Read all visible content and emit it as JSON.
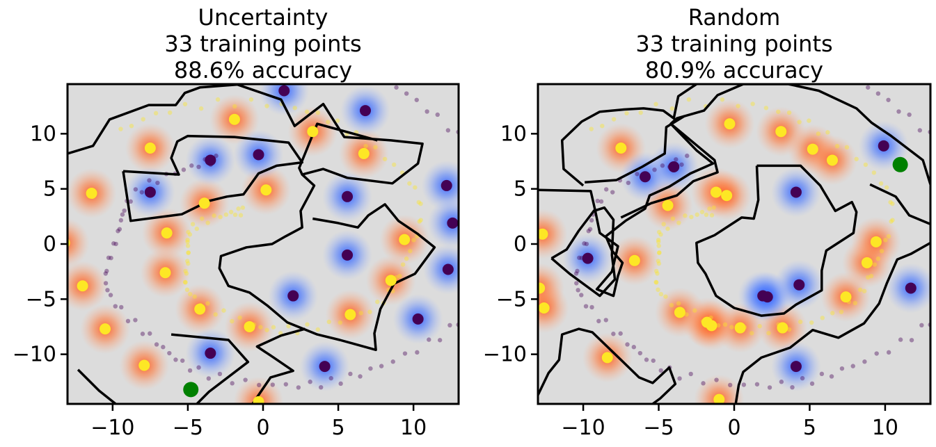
{
  "colors": {
    "background": "#dcdcdc",
    "positive_blob": "#ff5a1e",
    "negative_blob": "#2b5cff",
    "positive_point": "#fde725",
    "negative_point": "#440154",
    "pool_positive": "#fde725",
    "pool_negative": "#440154",
    "new_point": "#008000",
    "boundary": "#000000"
  },
  "chart_data": [
    {
      "type": "scatter",
      "title_lines": [
        "Uncertainty",
        "33 training points",
        "88.6% accuracy"
      ],
      "xlim": [
        -13,
        13
      ],
      "ylim": [
        -14.5,
        14.5
      ],
      "xticks": [
        "−10",
        "−5",
        "0",
        "5",
        "10"
      ],
      "xtick_values": [
        -10,
        -5,
        0,
        5,
        10
      ],
      "yticks": [
        "−10",
        "−5",
        "0",
        "5",
        "10"
      ],
      "ytick_values": [
        -10,
        -5,
        0,
        5,
        10
      ],
      "grid": false,
      "positive_points": [
        [
          -11.4,
          4.6
        ],
        [
          -13.2,
          0.1
        ],
        [
          -12,
          -3.8
        ],
        [
          -10.5,
          -7.7
        ],
        [
          -7.9,
          -11
        ],
        [
          -0.3,
          -14.3
        ],
        [
          -7.5,
          8.7
        ],
        [
          -1.9,
          11.3
        ],
        [
          3.3,
          10.2
        ],
        [
          6.7,
          8.2
        ],
        [
          -3.9,
          3.7
        ],
        [
          0.2,
          4.9
        ],
        [
          -6.4,
          1
        ],
        [
          -6.5,
          -2.6
        ],
        [
          -4.2,
          -5.9
        ],
        [
          -0.9,
          -7.5
        ],
        [
          5.8,
          -6.4
        ],
        [
          8.5,
          -3.3
        ],
        [
          9.4,
          0.4
        ]
      ],
      "negative_points": [
        [
          1.4,
          13.9
        ],
        [
          6.8,
          12.1
        ],
        [
          -3.5,
          7.6
        ],
        [
          -0.3,
          8.1
        ],
        [
          -7.5,
          4.7
        ],
        [
          5.6,
          4.3
        ],
        [
          12.2,
          5.3
        ],
        [
          12.6,
          1.9
        ],
        [
          5.6,
          -1
        ],
        [
          12.3,
          -2.3
        ],
        [
          10.3,
          -6.8
        ],
        [
          2,
          -4.7
        ],
        [
          -3.5,
          -9.9
        ],
        [
          4.1,
          -11.1
        ]
      ],
      "new_point": [
        -4.8,
        -13.2
      ],
      "pool_spirals": {
        "positive": {
          "a": 0.0,
          "b": 1.62,
          "t_start": 2.0,
          "t_end": 8.6,
          "count": 90
        },
        "negative": {
          "a": 0.0,
          "b": 1.62,
          "t_start": 5.1,
          "t_end": 11.1,
          "count": 100
        }
      },
      "boundary_paths": [
        [
          [
            -13,
            8.2
          ],
          [
            -11.3,
            8.9
          ],
          [
            -10.2,
            11.3
          ],
          [
            -7.6,
            12.6
          ],
          [
            -5.8,
            12.6
          ],
          [
            -5.2,
            13.7
          ],
          [
            -4.2,
            14.2
          ],
          [
            -1.3,
            14.5
          ]
        ],
        [
          [
            -1.8,
            14.5
          ],
          [
            1.2,
            13.1
          ],
          [
            2.1,
            10.7
          ],
          [
            4,
            12.7
          ],
          [
            5.4,
            9.7
          ],
          [
            8.5,
            9.4
          ],
          [
            10.6,
            9.1
          ],
          [
            10.3,
            7.3
          ],
          [
            8.6,
            5.5
          ],
          [
            5.6,
            6
          ],
          [
            4,
            6.8
          ],
          [
            2.6,
            6.3
          ],
          [
            2.4,
            6.9
          ],
          [
            3.6,
            10.9
          ],
          [
            7.6,
            9.4
          ]
        ],
        [
          [
            -9.3,
            6.6
          ],
          [
            -8.8,
            2.1
          ],
          [
            -5.4,
            2.7
          ],
          [
            -3.6,
            3.9
          ],
          [
            -2.4,
            4.3
          ],
          [
            -1.3,
            4.5
          ],
          [
            -0.3,
            6.4
          ],
          [
            0.9,
            7.1
          ],
          [
            2.6,
            7.4
          ],
          [
            1.7,
            9.2
          ],
          [
            -1.9,
            9.7
          ],
          [
            -5,
            9.8
          ],
          [
            -5.7,
            9.3
          ],
          [
            -6.1,
            7.8
          ],
          [
            -5.6,
            6.3
          ],
          [
            -9.3,
            6.6
          ]
        ],
        [
          [
            2.6,
            6.3
          ],
          [
            3.4,
            5.3
          ],
          [
            2.5,
            3
          ],
          [
            2.6,
            1.5
          ],
          [
            1.5,
            0.7
          ],
          [
            0.6,
            0
          ],
          [
            -1.1,
            -0.3
          ],
          [
            -2.8,
            -1.1
          ],
          [
            -2.9,
            -2.2
          ],
          [
            -2.3,
            -3.8
          ],
          [
            -0.9,
            -4.4
          ],
          [
            0.3,
            -5.6
          ],
          [
            1.6,
            -7.1
          ],
          [
            3.6,
            -8.2
          ],
          [
            5.1,
            -8.7
          ],
          [
            7.5,
            -9.6
          ],
          [
            7.4,
            -8.1
          ],
          [
            7.8,
            -5.9
          ],
          [
            8.7,
            -3.6
          ],
          [
            10.1,
            -2.7
          ],
          [
            11.4,
            -0.3
          ],
          [
            10.3,
            0.9
          ],
          [
            9,
            2.1
          ],
          [
            8.1,
            3.6
          ],
          [
            7,
            2.6
          ],
          [
            6.3,
            1.5
          ],
          [
            5,
            1.9
          ],
          [
            3.3,
            2.3
          ]
        ],
        [
          [
            -6.1,
            -8.2
          ],
          [
            -2.3,
            -8.7
          ],
          [
            -1,
            -10.7
          ],
          [
            -3.6,
            -13.4
          ],
          [
            -4.4,
            -14.5
          ]
        ],
        [
          [
            -12.3,
            -11.4
          ],
          [
            -10.9,
            -13.3
          ],
          [
            -9.8,
            -14.5
          ]
        ],
        [
          [
            -0.7,
            -14.5
          ],
          [
            0.5,
            -12.1
          ],
          [
            2,
            -11.5
          ],
          [
            0.6,
            -10.2
          ],
          [
            -0.4,
            -9.3
          ],
          [
            1.2,
            -8.3
          ],
          [
            2.8,
            -7.7
          ]
        ]
      ]
    },
    {
      "type": "scatter",
      "title_lines": [
        "Random",
        "33 training points",
        "80.9% accuracy"
      ],
      "xlim": [
        -13,
        13
      ],
      "ylim": [
        -14.5,
        14.5
      ],
      "xticks": [
        "−10",
        "−5",
        "0",
        "5",
        "10"
      ],
      "xtick_values": [
        -10,
        -5,
        0,
        5,
        10
      ],
      "yticks": [
        "−10",
        "−5",
        "0",
        "5",
        "10"
      ],
      "ytick_values": [
        -10,
        -5,
        0,
        5,
        10
      ],
      "grid": false,
      "positive_points": [
        [
          -12.7,
          0.9
        ],
        [
          -12.9,
          -4
        ],
        [
          -12.6,
          -5.8
        ],
        [
          -8.4,
          -10.3
        ],
        [
          -1,
          -14.1
        ],
        [
          -7.5,
          8.7
        ],
        [
          -0.3,
          10.9
        ],
        [
          3.1,
          10.2
        ],
        [
          5.2,
          8.6
        ],
        [
          6.5,
          7.6
        ],
        [
          -4.4,
          3.5
        ],
        [
          -1.2,
          4.7
        ],
        [
          -0.5,
          4.4
        ],
        [
          -6.6,
          -1.5
        ],
        [
          -3.6,
          -6.2
        ],
        [
          -1.8,
          -7.1
        ],
        [
          0.4,
          -7.6
        ],
        [
          3.2,
          -7.6
        ],
        [
          7.4,
          -4.8
        ],
        [
          8.8,
          -1.7
        ],
        [
          9.4,
          0.2
        ],
        [
          -1.5,
          -7.4
        ]
      ],
      "negative_points": [
        [
          -5.9,
          6.1
        ],
        [
          -4,
          7
        ],
        [
          4.1,
          4.7
        ],
        [
          9.9,
          8.9
        ],
        [
          -9.7,
          -1.3
        ],
        [
          1.9,
          -4.7
        ],
        [
          2.2,
          -4.8
        ],
        [
          4.3,
          -3.7
        ],
        [
          11.7,
          -4
        ],
        [
          4.1,
          -11.1
        ]
      ],
      "new_point": [
        11,
        7.2
      ],
      "pool_spirals": {
        "positive": {
          "a": 0.0,
          "b": 1.62,
          "t_start": 2.0,
          "t_end": 8.6,
          "count": 90
        },
        "negative": {
          "a": 0.0,
          "b": 1.62,
          "t_start": 5.1,
          "t_end": 11.1,
          "count": 100
        }
      },
      "boundary_paths": [
        [
          [
            -13,
            4.9
          ],
          [
            -9.5,
            4.8
          ],
          [
            -9.2,
            3
          ],
          [
            -8.9,
            1
          ],
          [
            -7.7,
            -0.2
          ],
          [
            -8.1,
            -2.5
          ],
          [
            -9.1,
            -4.1
          ],
          [
            -8,
            -4.7
          ],
          [
            -7.7,
            -2.9
          ],
          [
            -7.4,
            -1.7
          ],
          [
            -8.1,
            -0.6
          ],
          [
            -8.5,
            0.7
          ],
          [
            -7.2,
            2.1
          ],
          [
            -5.9,
            3.2
          ],
          [
            -5.6,
            4.4
          ],
          [
            -4.3,
            5.2
          ],
          [
            -2.9,
            6.4
          ],
          [
            -1.4,
            7.3
          ],
          [
            -2.5,
            8.5
          ],
          [
            -4.2,
            10.9
          ],
          [
            -3.8,
            11.4
          ],
          [
            -2,
            12.1
          ],
          [
            -1.1,
            13.5
          ],
          [
            0.6,
            14.5
          ],
          [
            3.6,
            14.5
          ],
          [
            5.6,
            13.9
          ],
          [
            8.1,
            12.3
          ],
          [
            9.1,
            11
          ],
          [
            10.4,
            9.8
          ],
          [
            12.5,
            7.6
          ],
          [
            13,
            5.4
          ]
        ],
        [
          [
            -10,
            5.3
          ],
          [
            -11.3,
            6.8
          ],
          [
            -11.4,
            9.4
          ],
          [
            -10.1,
            11.1
          ],
          [
            -8.9,
            12
          ],
          [
            -7.3,
            12.2
          ],
          [
            -6,
            12.3
          ],
          [
            -4.7,
            12.1
          ],
          [
            -4,
            11.4
          ],
          [
            -3.7,
            13.4
          ],
          [
            -2.5,
            14.5
          ]
        ],
        [
          [
            -9.9,
            5.6
          ],
          [
            -7.8,
            5.8
          ],
          [
            -6.1,
            7
          ],
          [
            -4.6,
            8.2
          ],
          [
            -4.5,
            10.6
          ],
          [
            -3.3,
            11.6
          ]
        ],
        [
          [
            -7.5,
            2.4
          ],
          [
            -5.5,
            3.7
          ],
          [
            -3.8,
            4.4
          ],
          [
            -2.7,
            5.7
          ],
          [
            -1.1,
            6.5
          ],
          [
            -1.3,
            7.6
          ],
          [
            -4.2,
            10.9
          ]
        ],
        [
          [
            -12.1,
            -1.3
          ],
          [
            -11.1,
            -0.5
          ],
          [
            -10.3,
            1.2
          ],
          [
            -9.3,
            3
          ],
          [
            -8.6,
            3.3
          ],
          [
            -8,
            2.2
          ],
          [
            -8.1,
            -1
          ],
          [
            -7.9,
            -3.2
          ],
          [
            -8.9,
            -4.7
          ],
          [
            -10.9,
            -2.7
          ],
          [
            -12.1,
            -1.3
          ]
        ],
        [
          [
            1.5,
            7.1
          ],
          [
            4.4,
            7.1
          ],
          [
            5.7,
            5.3
          ],
          [
            6.7,
            3
          ],
          [
            7.8,
            3.8
          ],
          [
            8.1,
            2.9
          ],
          [
            7.9,
            1
          ],
          [
            6.1,
            -0.6
          ],
          [
            5.8,
            -2.4
          ],
          [
            5.8,
            -4.2
          ],
          [
            4.1,
            -5.5
          ],
          [
            3.3,
            -6.3
          ],
          [
            1.8,
            -6.5
          ],
          [
            0,
            -5.8
          ],
          [
            -1.2,
            -4.7
          ],
          [
            -1.9,
            -2.7
          ],
          [
            -2.4,
            -1.7
          ],
          [
            -2.5,
            0.1
          ],
          [
            -1.3,
            0.8
          ],
          [
            0.5,
            2.4
          ],
          [
            1.3,
            2.3
          ],
          [
            1.6,
            4
          ],
          [
            1.5,
            7.1
          ]
        ],
        [
          [
            9,
            5.4
          ],
          [
            10.7,
            4.3
          ],
          [
            11.6,
            2.6
          ],
          [
            13,
            1.8
          ]
        ],
        [
          [
            13,
            0.1
          ],
          [
            11.7,
            -0.9
          ],
          [
            10.8,
            -1.4
          ],
          [
            10.1,
            -3.6
          ],
          [
            9.6,
            -5.4
          ],
          [
            8.6,
            -7.2
          ],
          [
            6.9,
            -8.5
          ],
          [
            5.2,
            -7.8
          ],
          [
            3.7,
            -9.4
          ],
          [
            1.8,
            -10.3
          ],
          [
            0.6,
            -11.6
          ],
          [
            0.3,
            -12.8
          ],
          [
            0.1,
            -14.5
          ]
        ],
        [
          [
            -13,
            -13.7
          ],
          [
            -12.3,
            -11.7
          ],
          [
            -11.6,
            -10.5
          ],
          [
            -11.4,
            -8.2
          ],
          [
            -10.3,
            -7.7
          ],
          [
            -9.4,
            -8
          ],
          [
            -7.5,
            -10.5
          ],
          [
            -6.3,
            -12.1
          ],
          [
            -5.4,
            -12.6
          ],
          [
            -4.3,
            -11.2
          ],
          [
            -3.9,
            -12.7
          ],
          [
            -4.9,
            -14
          ],
          [
            -5.4,
            -14.5
          ]
        ]
      ]
    }
  ]
}
